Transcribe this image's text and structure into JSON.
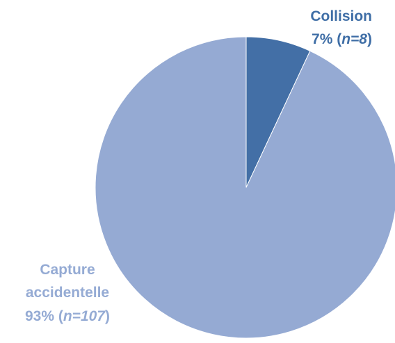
{
  "chart_data": {
    "type": "pie",
    "title": "",
    "slices": [
      {
        "label": "Collision",
        "percent_text": "7%",
        "n_text": "n=8",
        "value": 8,
        "percent": 7,
        "color": "#436fa6",
        "label_color": "#3f6ea6"
      },
      {
        "label_lines": [
          "Capture",
          "accidentelle"
        ],
        "percent_text": "93%",
        "n_text": "n=107",
        "value": 107,
        "percent": 93,
        "color": "#95aad3",
        "label_color": "#95abd4"
      }
    ]
  }
}
